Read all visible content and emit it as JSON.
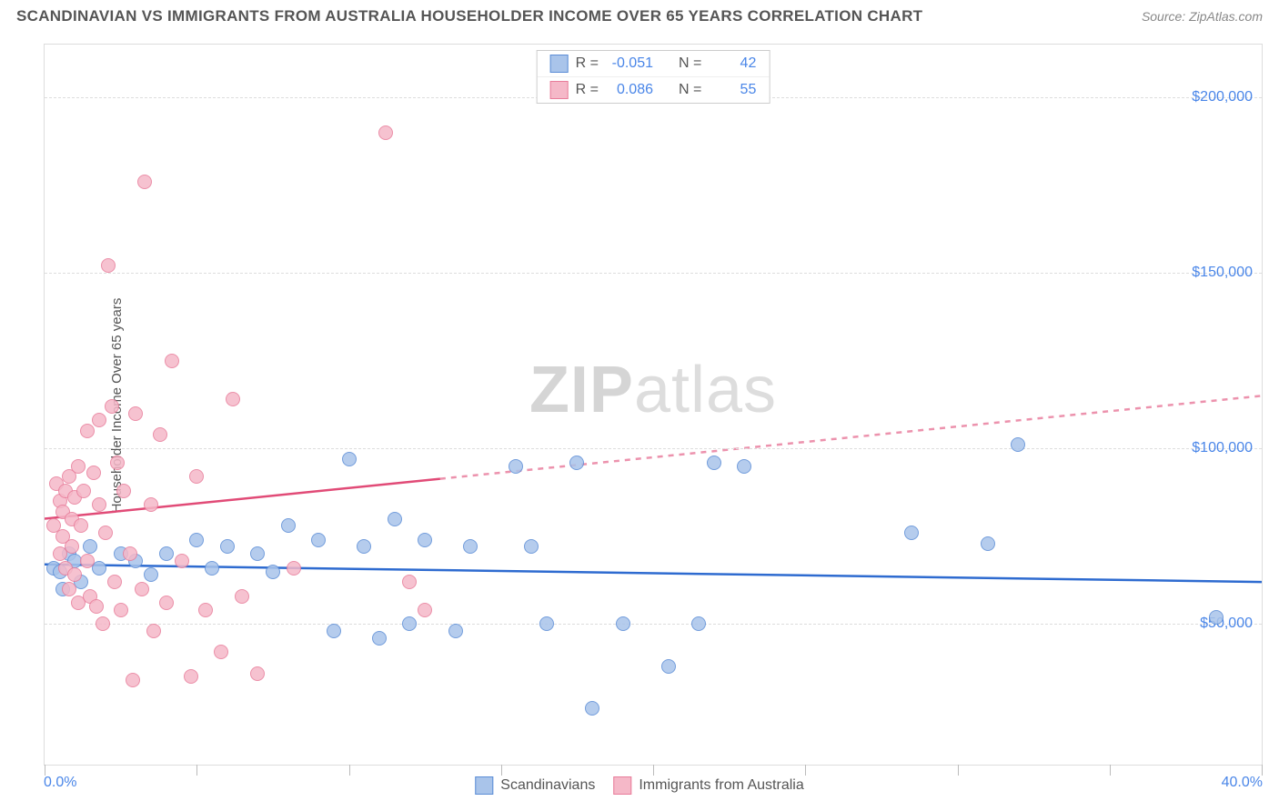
{
  "header": {
    "title": "SCANDINAVIAN VS IMMIGRANTS FROM AUSTRALIA HOUSEHOLDER INCOME OVER 65 YEARS CORRELATION CHART",
    "source_prefix": "Source: ",
    "source_name": "ZipAtlas.com"
  },
  "ylabel": "Householder Income Over 65 years",
  "watermark": {
    "bold": "ZIP",
    "rest": "atlas"
  },
  "chart": {
    "type": "scatter",
    "background_color": "#ffffff",
    "grid_color": "#dddddd",
    "xlim": [
      0,
      40
    ],
    "ylim": [
      10000,
      215000
    ],
    "x_ticks_pct": [
      0,
      5,
      10,
      15,
      20,
      25,
      30,
      35,
      40
    ],
    "y_gridlines": [
      50000,
      100000,
      150000,
      200000
    ],
    "y_tick_labels": [
      "$50,000",
      "$100,000",
      "$150,000",
      "$200,000"
    ],
    "xaxis_min_label": "0.0%",
    "xaxis_max_label": "40.0%",
    "marker_radius": 8,
    "marker_border_width": 1.5,
    "marker_fill_opacity": 0.25,
    "series": [
      {
        "key": "scand",
        "label": "Scandinavians",
        "color_border": "#5b8dd6",
        "color_fill": "#a9c4ea",
        "r_label": "R =",
        "r_value": "-0.051",
        "n_label": "N =",
        "n_value": "42",
        "trend": {
          "y_at_x0": 67000,
          "y_at_x40": 62000,
          "solid_until_x": 40,
          "stroke": "#2e6bd0",
          "width": 2.5
        },
        "points": [
          [
            0.3,
            66000
          ],
          [
            0.5,
            65000
          ],
          [
            0.6,
            60000
          ],
          [
            0.8,
            70000
          ],
          [
            1.0,
            68000
          ],
          [
            1.2,
            62000
          ],
          [
            1.5,
            72000
          ],
          [
            1.8,
            66000
          ],
          [
            2.5,
            70000
          ],
          [
            3.0,
            68000
          ],
          [
            3.5,
            64000
          ],
          [
            4.0,
            70000
          ],
          [
            5.0,
            74000
          ],
          [
            5.5,
            66000
          ],
          [
            6.0,
            72000
          ],
          [
            7.0,
            70000
          ],
          [
            7.5,
            65000
          ],
          [
            8.0,
            78000
          ],
          [
            9.0,
            74000
          ],
          [
            9.5,
            48000
          ],
          [
            10.0,
            97000
          ],
          [
            10.5,
            72000
          ],
          [
            11.0,
            46000
          ],
          [
            11.5,
            80000
          ],
          [
            12.0,
            50000
          ],
          [
            12.5,
            74000
          ],
          [
            13.5,
            48000
          ],
          [
            14.0,
            72000
          ],
          [
            15.5,
            95000
          ],
          [
            16.0,
            72000
          ],
          [
            16.5,
            50000
          ],
          [
            17.5,
            96000
          ],
          [
            18.0,
            26000
          ],
          [
            19.0,
            50000
          ],
          [
            20.5,
            38000
          ],
          [
            21.5,
            50000
          ],
          [
            22.0,
            96000
          ],
          [
            23.0,
            95000
          ],
          [
            28.5,
            76000
          ],
          [
            31.0,
            73000
          ],
          [
            32.0,
            101000
          ],
          [
            38.5,
            52000
          ]
        ]
      },
      {
        "key": "aus",
        "label": "Immigrants from Australia",
        "color_border": "#e87c9a",
        "color_fill": "#f5b8c8",
        "r_label": "R =",
        "r_value": "0.086",
        "n_label": "N =",
        "n_value": "55",
        "trend": {
          "y_at_x0": 80000,
          "y_at_x40": 115000,
          "solid_until_x": 13,
          "stroke": "#e14b77",
          "width": 2.5
        },
        "points": [
          [
            0.3,
            78000
          ],
          [
            0.4,
            90000
          ],
          [
            0.5,
            70000
          ],
          [
            0.5,
            85000
          ],
          [
            0.6,
            82000
          ],
          [
            0.6,
            75000
          ],
          [
            0.7,
            88000
          ],
          [
            0.7,
            66000
          ],
          [
            0.8,
            92000
          ],
          [
            0.8,
            60000
          ],
          [
            0.9,
            80000
          ],
          [
            0.9,
            72000
          ],
          [
            1.0,
            86000
          ],
          [
            1.0,
            64000
          ],
          [
            1.1,
            95000
          ],
          [
            1.1,
            56000
          ],
          [
            1.2,
            78000
          ],
          [
            1.3,
            88000
          ],
          [
            1.4,
            105000
          ],
          [
            1.4,
            68000
          ],
          [
            1.5,
            58000
          ],
          [
            1.6,
            93000
          ],
          [
            1.7,
            55000
          ],
          [
            1.8,
            84000
          ],
          [
            1.8,
            108000
          ],
          [
            1.9,
            50000
          ],
          [
            2.0,
            76000
          ],
          [
            2.1,
            152000
          ],
          [
            2.2,
            112000
          ],
          [
            2.3,
            62000
          ],
          [
            2.4,
            96000
          ],
          [
            2.5,
            54000
          ],
          [
            2.6,
            88000
          ],
          [
            2.8,
            70000
          ],
          [
            2.9,
            34000
          ],
          [
            3.0,
            110000
          ],
          [
            3.2,
            60000
          ],
          [
            3.3,
            176000
          ],
          [
            3.5,
            84000
          ],
          [
            3.6,
            48000
          ],
          [
            3.8,
            104000
          ],
          [
            4.0,
            56000
          ],
          [
            4.2,
            125000
          ],
          [
            4.5,
            68000
          ],
          [
            4.8,
            35000
          ],
          [
            5.0,
            92000
          ],
          [
            5.3,
            54000
          ],
          [
            5.8,
            42000
          ],
          [
            6.2,
            114000
          ],
          [
            6.5,
            58000
          ],
          [
            7.0,
            36000
          ],
          [
            8.2,
            66000
          ],
          [
            11.2,
            190000
          ],
          [
            12.0,
            62000
          ],
          [
            12.5,
            54000
          ]
        ]
      }
    ]
  },
  "stats_box": {
    "rows": [
      {
        "series": "scand"
      },
      {
        "series": "aus"
      }
    ]
  },
  "bottom_legend": [
    {
      "series": "scand"
    },
    {
      "series": "aus"
    }
  ]
}
